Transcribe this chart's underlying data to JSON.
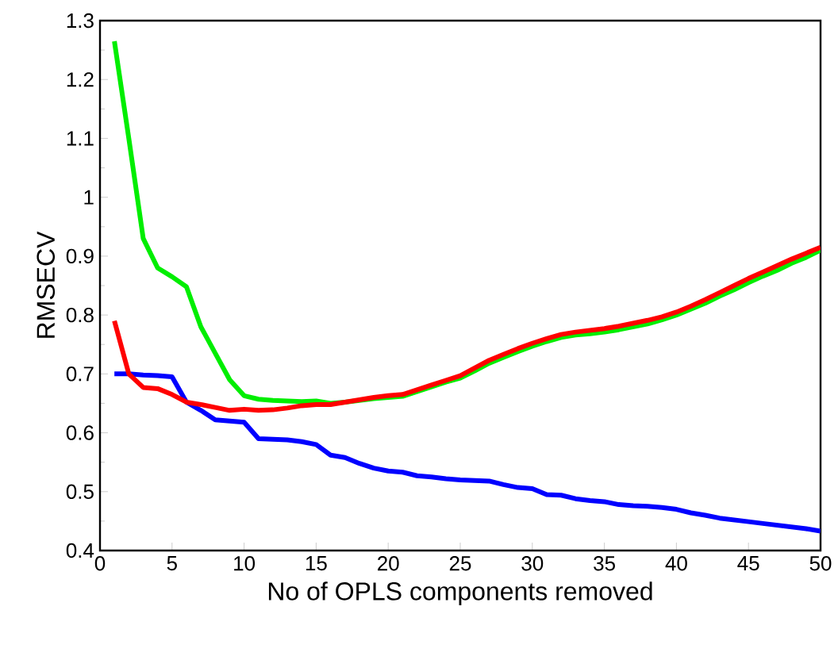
{
  "chart_data": {
    "type": "line",
    "xlabel": "No of OPLS components removed",
    "ylabel": "RMSECV",
    "xlim": [
      0,
      50
    ],
    "ylim": [
      0.4,
      1.3
    ],
    "xticks": [
      0,
      5,
      10,
      15,
      20,
      25,
      30,
      35,
      40,
      45,
      50
    ],
    "yticks": [
      0.4,
      0.5,
      0.6,
      0.7,
      0.8,
      0.9,
      1,
      1.1,
      1.2,
      1.3
    ],
    "grid": false,
    "marker": "none",
    "line_style": "solid",
    "x": [
      1,
      2,
      3,
      4,
      5,
      6,
      7,
      8,
      9,
      10,
      11,
      12,
      13,
      14,
      15,
      16,
      17,
      18,
      19,
      20,
      21,
      22,
      23,
      24,
      25,
      26,
      27,
      28,
      29,
      30,
      31,
      32,
      33,
      34,
      35,
      36,
      37,
      38,
      39,
      40,
      41,
      42,
      43,
      44,
      45,
      46,
      47,
      48,
      49,
      50
    ],
    "series": [
      {
        "color": "#00ee00",
        "values": [
          1.265,
          1.1,
          0.93,
          0.88,
          0.865,
          0.848,
          0.78,
          0.735,
          0.69,
          0.663,
          0.657,
          0.655,
          0.654,
          0.653,
          0.654,
          0.65,
          0.652,
          0.655,
          0.658,
          0.66,
          0.662,
          0.67,
          0.678,
          0.686,
          0.693,
          0.705,
          0.718,
          0.728,
          0.738,
          0.747,
          0.755,
          0.762,
          0.766,
          0.768,
          0.771,
          0.775,
          0.78,
          0.785,
          0.792,
          0.8,
          0.81,
          0.82,
          0.832,
          0.843,
          0.855,
          0.866,
          0.876,
          0.888,
          0.898,
          0.91
        ]
      },
      {
        "color": "#0000ff",
        "values": [
          0.7,
          0.7,
          0.698,
          0.697,
          0.695,
          0.652,
          0.638,
          0.622,
          0.62,
          0.618,
          0.59,
          0.589,
          0.588,
          0.585,
          0.58,
          0.562,
          0.558,
          0.548,
          0.54,
          0.535,
          0.533,
          0.527,
          0.525,
          0.522,
          0.52,
          0.519,
          0.518,
          0.512,
          0.507,
          0.505,
          0.495,
          0.494,
          0.488,
          0.485,
          0.483,
          0.478,
          0.476,
          0.475,
          0.473,
          0.47,
          0.464,
          0.46,
          0.455,
          0.452,
          0.449,
          0.446,
          0.443,
          0.44,
          0.437,
          0.433
        ]
      },
      {
        "color": "#ff0000",
        "values": [
          0.79,
          0.7,
          0.677,
          0.675,
          0.665,
          0.652,
          0.648,
          0.643,
          0.638,
          0.64,
          0.638,
          0.639,
          0.642,
          0.646,
          0.648,
          0.648,
          0.652,
          0.656,
          0.66,
          0.663,
          0.665,
          0.673,
          0.681,
          0.689,
          0.697,
          0.71,
          0.723,
          0.733,
          0.743,
          0.752,
          0.76,
          0.767,
          0.771,
          0.774,
          0.777,
          0.781,
          0.786,
          0.791,
          0.797,
          0.805,
          0.815,
          0.826,
          0.838,
          0.85,
          0.862,
          0.873,
          0.884,
          0.895,
          0.905,
          0.915
        ]
      }
    ]
  }
}
